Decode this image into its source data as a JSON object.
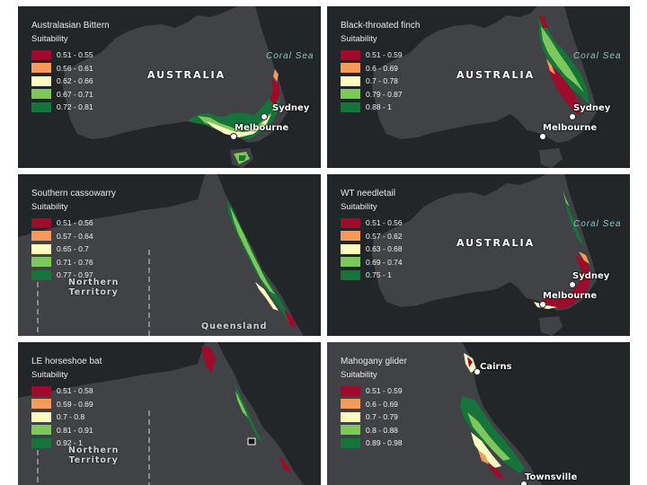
{
  "colors": {
    "c1": "#9e0b2b",
    "c2": "#f59a5b",
    "c3": "#fffbc1",
    "c4": "#7dc75c",
    "c5": "#16733a",
    "land": "#404245",
    "sea": "#232628"
  },
  "panels": [
    {
      "title": "Australasian Bittern",
      "legend_title": "Suitability",
      "classes": [
        "0.51 - 0.55",
        "0.56 - 0.61",
        "0.62 - 0.66",
        "0.67 - 0.71",
        "0.72 - 0.81"
      ],
      "country_label": "AUSTRALIA",
      "sea_label": "Coral Sea",
      "cities": [
        "Sydney",
        "Melbourne"
      ]
    },
    {
      "title": "Black-throated finch",
      "legend_title": "Suitability",
      "classes": [
        "0.51 - 0.59",
        "0.6 - 0.69",
        "0.7 - 0.78",
        "0.79 - 0.87",
        "0.88 - 1"
      ],
      "country_label": "AUSTRALIA",
      "sea_label": "Coral Sea",
      "cities": [
        "Sydney",
        "Melbourne"
      ]
    },
    {
      "title": "Southern cassowarry",
      "legend_title": "Suitability",
      "classes": [
        "0.51 - 0.56",
        "0.57 - 0.64",
        "0.65 - 0.7",
        "0.71 - 0.76",
        "0.77 - 0.97"
      ],
      "region_labels": [
        "Northern\nTerritory",
        "Queensland"
      ]
    },
    {
      "title": "WT needletail",
      "legend_title": "Suitability",
      "classes": [
        "0.51 - 0.56",
        "0.57 - 0.62",
        "0.63 - 0.68",
        "0.69 - 0.74",
        "0.75 - 1"
      ],
      "country_label": "AUSTRALIA",
      "sea_label": "Coral Sea",
      "cities": [
        "Sydney",
        "Melbourne"
      ]
    },
    {
      "title": "LE horseshoe bat",
      "legend_title": "Suitability",
      "classes": [
        "0.51 - 0.58",
        "0.59 - 0.69",
        "0.7 - 0.8",
        "0.81 - 0.91",
        "0.92 - 1"
      ],
      "region_labels": [
        "Northern\nTerritory"
      ]
    },
    {
      "title": "Mahogany glider",
      "legend_title": "Suitability",
      "classes": [
        "0.51 - 0.59",
        "0.6 - 0.69",
        "0.7 - 0.79",
        "0.8 - 0.88",
        "0.89 - 0.98"
      ],
      "cities": [
        "Cairns",
        "Townsville"
      ]
    }
  ]
}
